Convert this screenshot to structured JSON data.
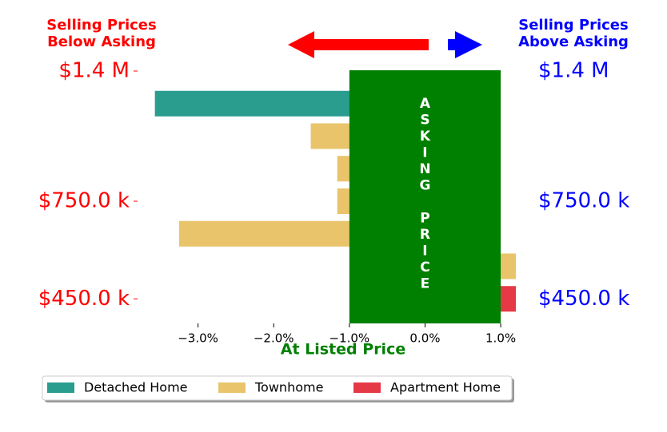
{
  "chart_data": {
    "type": "barh",
    "left_heading": [
      "Selling Prices",
      "Below Asking"
    ],
    "right_heading": [
      "Selling Prices",
      "Above Asking"
    ],
    "xlabel": "At Listed Price",
    "categories": [
      "$1.4 M",
      null,
      null,
      null,
      "$750.0 k",
      null,
      null,
      "$450.0 k"
    ],
    "series": [
      {
        "name": "Detached Home",
        "color": "#2a9d8f",
        "values": [
          null,
          -3.57,
          null,
          null,
          null,
          null,
          null,
          null
        ]
      },
      {
        "name": "Townhome",
        "color": "#e9c46a",
        "values": [
          null,
          null,
          -1.51,
          -1.16,
          -1.16,
          -3.25,
          1.2,
          null
        ]
      },
      {
        "name": "Apartment Home",
        "color": "#e63946",
        "values": [
          null,
          null,
          null,
          null,
          null,
          null,
          null,
          1.2
        ]
      }
    ],
    "band": {
      "label": "ASKING PRICE",
      "range": [
        -1,
        1
      ],
      "color": "#008000"
    },
    "xlim": [
      -3.82,
      1.2
    ],
    "xticks": [
      {
        "value": -3,
        "label": "−3.0%"
      },
      {
        "value": -2,
        "label": "−2.0%"
      },
      {
        "value": -1,
        "label": "−1.0%"
      },
      {
        "value": 0,
        "label": "0.0%"
      },
      {
        "value": 1,
        "label": "1.0%"
      }
    ],
    "legend": "bottom"
  }
}
